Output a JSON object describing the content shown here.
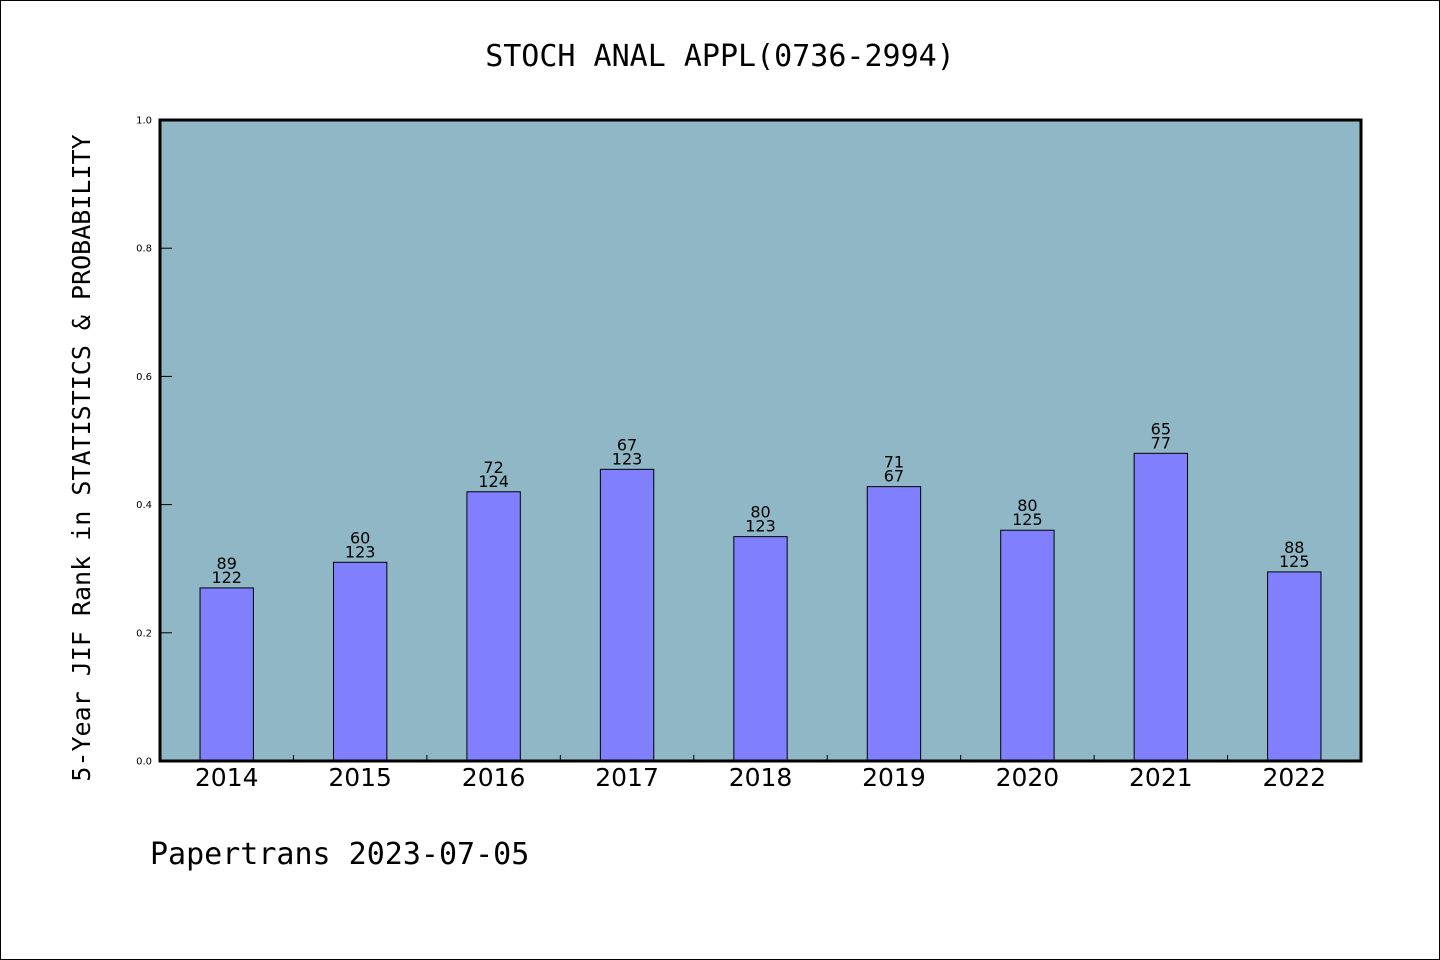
{
  "chart_data": {
    "type": "bar",
    "title": "STOCH ANAL APPL(0736-2994)",
    "ylabel": "5-Year JIF Rank in STATISTICS & PROBABILITY",
    "xlabel": "",
    "ylim": [
      0,
      1.0
    ],
    "yticks": [
      "0.0",
      "0.2",
      "0.4",
      "0.6",
      "0.8",
      "1.0"
    ],
    "categories": [
      "2014",
      "2015",
      "2016",
      "2017",
      "2018",
      "2019",
      "2020",
      "2021",
      "2022"
    ],
    "values": [
      0.27,
      0.31,
      0.42,
      0.455,
      0.35,
      0.428,
      0.36,
      0.48,
      0.295
    ],
    "labels_top": [
      "89",
      "60",
      "72",
      "67",
      "80",
      "71",
      "80",
      "65",
      "88"
    ],
    "labels_bottom": [
      "122",
      "123",
      "124",
      "123",
      "123",
      "67",
      "125",
      "77",
      "125"
    ],
    "grid": false,
    "colors": {
      "plot_bg": "#8fb7c5",
      "bar": "#8080ff",
      "bar_edge": "#000000"
    }
  },
  "footer": "Papertrans 2023-07-05"
}
